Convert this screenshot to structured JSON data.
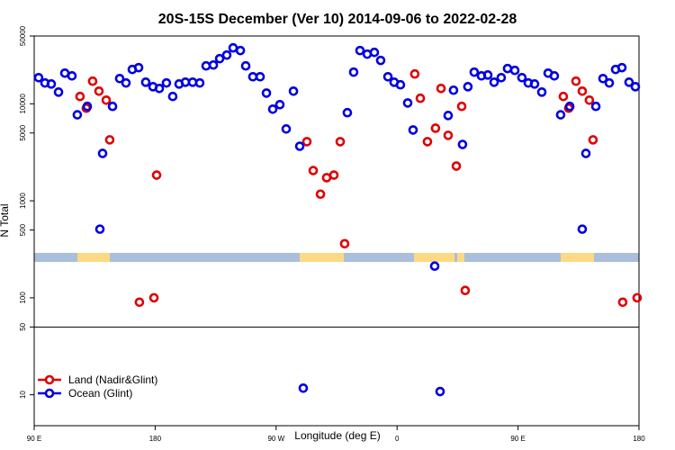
{
  "chart_data": {
    "type": "scatter",
    "title": "20S-15S December (Ver 10)   2014-09-06 to 2022-02-28",
    "xlabel": "Longitude (deg E)",
    "ylabel": "N Total",
    "xlim": [
      90,
      540
    ],
    "ylim": [
      4.8,
      50000
    ],
    "ylog": true,
    "xticks": [
      {
        "value": 90,
        "label": "90 E"
      },
      180,
      {
        "value": 270,
        "label": "90 W"
      },
      {
        "value": 360,
        "label": "0"
      },
      {
        "value": 450,
        "label": "90 E"
      },
      {
        "value": 540,
        "label": "180"
      }
    ],
    "yticks": [
      10,
      50,
      100,
      500,
      1000,
      5000,
      10000,
      50000
    ],
    "reference_line": 50,
    "legend": "bottom-left",
    "series": [
      {
        "name": "Land (Nadir&Glint)",
        "color": "#e00000",
        "x": [
          124.1,
          128.8,
          133.5,
          138.2,
          143.6,
          146.2,
          168.3,
          179.1,
          181.1,
          292.9,
          297.6,
          303.0,
          307.6,
          313.0,
          317.7,
          321.0,
          373.2,
          377.3,
          382.6,
          388.6,
          392.7,
          398.0,
          404.1,
          408.1,
          410.7,
          483.7,
          487.7,
          493.1,
          497.8,
          503.1,
          505.8,
          527.9,
          538.6
        ],
        "values": [
          11900,
          9000,
          17100,
          13500,
          10900,
          4250,
          90,
          100,
          1840,
          4070,
          2050,
          1170,
          1730,
          1840,
          4070,
          361,
          20300,
          11400,
          4070,
          5600,
          14400,
          4730,
          2280,
          9400,
          119,
          11900,
          9000,
          17100,
          13500,
          10900,
          4250,
          90,
          100
        ]
      },
      {
        "name": "Ocean (Glint)",
        "color": "#0000e0",
        "x": [
          93.3,
          98.0,
          102.7,
          108.1,
          112.8,
          118.1,
          122.1,
          129.5,
          138.9,
          140.9,
          148.3,
          153.6,
          158.3,
          163.0,
          167.7,
          173.0,
          178.4,
          183.1,
          188.4,
          193.1,
          197.8,
          202.5,
          207.9,
          213.2,
          217.9,
          223.3,
          228.0,
          233.3,
          238.0,
          243.4,
          247.4,
          252.7,
          258.1,
          262.8,
          267.5,
          272.8,
          277.5,
          282.9,
          287.6,
          290.2,
          323.0,
          327.7,
          332.4,
          337.8,
          343.1,
          347.8,
          353.2,
          357.8,
          362.5,
          367.9,
          371.9,
          388.0,
          392.0,
          398.0,
          402.0,
          408.7,
          412.7,
          417.4,
          422.8,
          427.5,
          432.2,
          437.5,
          442.2,
          447.6,
          452.9,
          457.6,
          462.3,
          467.7,
          472.4,
          477.0,
          481.7,
          488.5,
          497.8,
          500.5,
          507.9,
          513.2,
          517.9,
          522.6,
          527.3,
          532.6,
          537.3
        ],
        "values": [
          18600,
          16400,
          16000,
          13200,
          20700,
          19400,
          7700,
          9400,
          510,
          3080,
          9400,
          18200,
          16400,
          22600,
          23600,
          16700,
          15000,
          14400,
          16400,
          11900,
          16000,
          16700,
          16700,
          16400,
          24600,
          25100,
          29200,
          31800,
          37700,
          35400,
          24600,
          19000,
          19000,
          12900,
          8800,
          9800,
          5500,
          13500,
          3650,
          11.7,
          8100,
          21200,
          35400,
          32500,
          33900,
          28000,
          19000,
          16700,
          15700,
          10200,
          5370,
          212,
          10.8,
          7570,
          13800,
          3810,
          15000,
          21200,
          19400,
          19800,
          16700,
          18600,
          23100,
          22100,
          18600,
          16400,
          16000,
          13200,
          20700,
          19400,
          7700,
          9400,
          510,
          3080,
          9400,
          18200,
          16400,
          22600,
          23600,
          16700,
          15000
        ]
      }
    ]
  }
}
